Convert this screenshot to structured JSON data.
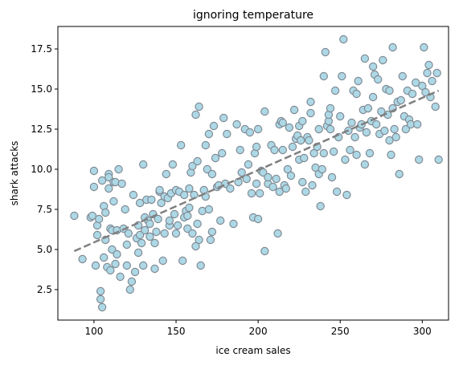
{
  "chart_data": {
    "type": "scatter",
    "title": "ignoring temperature",
    "xlabel": "ice cream sales",
    "ylabel": "shark attacks",
    "xlim": [
      78,
      316
    ],
    "ylim": [
      0.6,
      18.9
    ],
    "xticks": [
      100,
      150,
      200,
      250,
      300
    ],
    "yticks": [
      2.5,
      5.0,
      7.5,
      10.0,
      12.5,
      15.0,
      17.5
    ],
    "xtick_labels": [
      "100",
      "150",
      "200",
      "250",
      "300"
    ],
    "ytick_labels": [
      "2.5",
      "5.0",
      "7.5",
      "10.0",
      "12.5",
      "15.0",
      "17.5"
    ],
    "grid": false,
    "marker_color": "#add8e6",
    "marker_edge_color": "#808a94",
    "trend_color": "#808080",
    "trend_line": {
      "x": [
        88,
        310
      ],
      "y": [
        4.9,
        14.9
      ]
    },
    "points": [
      [
        88,
        7.1
      ],
      [
        93,
        4.4
      ],
      [
        98,
        7.0
      ],
      [
        99,
        7.1
      ],
      [
        100,
        8.9
      ],
      [
        100,
        9.9
      ],
      [
        101,
        4.0
      ],
      [
        102,
        6.5
      ],
      [
        102,
        5.9
      ],
      [
        103,
        6.9
      ],
      [
        104,
        2.4
      ],
      [
        104,
        1.9
      ],
      [
        105,
        1.4
      ],
      [
        105,
        9.3
      ],
      [
        106,
        7.7
      ],
      [
        106,
        4.5
      ],
      [
        107,
        7.3
      ],
      [
        107,
        5.6
      ],
      [
        108,
        3.9
      ],
      [
        109,
        9.7
      ],
      [
        109,
        9.5
      ],
      [
        109,
        8.8
      ],
      [
        110,
        6.3
      ],
      [
        110,
        3.7
      ],
      [
        111,
        5.0
      ],
      [
        111,
        6.2
      ],
      [
        112,
        9.2
      ],
      [
        112,
        8.0
      ],
      [
        113,
        9.2
      ],
      [
        113,
        4.1
      ],
      [
        114,
        6.2
      ],
      [
        114,
        4.7
      ],
      [
        115,
        10.0
      ],
      [
        116,
        3.3
      ],
      [
        117,
        9.1
      ],
      [
        118,
        6.3
      ],
      [
        119,
        7.5
      ],
      [
        120,
        5.3
      ],
      [
        120,
        4.0
      ],
      [
        121,
        6.0
      ],
      [
        122,
        2.5
      ],
      [
        123,
        3.0
      ],
      [
        124,
        8.4
      ],
      [
        125,
        3.6
      ],
      [
        126,
        5.7
      ],
      [
        127,
        6.5
      ],
      [
        127,
        4.8
      ],
      [
        128,
        7.9
      ],
      [
        128,
        5.9
      ],
      [
        129,
        5.4
      ],
      [
        130,
        10.3
      ],
      [
        130,
        4.0
      ],
      [
        131,
        7.0
      ],
      [
        131,
        6.2
      ],
      [
        132,
        8.1
      ],
      [
        133,
        6.8
      ],
      [
        134,
        6.6
      ],
      [
        134,
        5.8
      ],
      [
        135,
        8.1
      ],
      [
        136,
        7.2
      ],
      [
        137,
        5.4
      ],
      [
        137,
        3.8
      ],
      [
        138,
        6.1
      ],
      [
        139,
        6.9
      ],
      [
        140,
        8.6
      ],
      [
        140,
        8.7
      ],
      [
        141,
        7.9
      ],
      [
        142,
        4.3
      ],
      [
        143,
        6.0
      ],
      [
        143,
        8.3
      ],
      [
        144,
        9.7
      ],
      [
        145,
        8.2
      ],
      [
        146,
        6.5
      ],
      [
        146,
        6.8
      ],
      [
        147,
        8.5
      ],
      [
        148,
        10.3
      ],
      [
        149,
        7.2
      ],
      [
        150,
        6.0
      ],
      [
        150,
        8.7
      ],
      [
        151,
        6.5
      ],
      [
        152,
        8.6
      ],
      [
        153,
        11.5
      ],
      [
        154,
        4.3
      ],
      [
        155,
        7.0
      ],
      [
        155,
        8.4
      ],
      [
        156,
        7.4
      ],
      [
        157,
        6.3
      ],
      [
        157,
        7.1
      ],
      [
        158,
        8.8
      ],
      [
        158,
        7.6
      ],
      [
        159,
        9.8
      ],
      [
        160,
        6.0
      ],
      [
        160,
        10.2
      ],
      [
        161,
        8.4
      ],
      [
        162,
        5.2
      ],
      [
        162,
        13.4
      ],
      [
        163,
        10.5
      ],
      [
        163,
        6.6
      ],
      [
        164,
        13.9
      ],
      [
        164,
        5.6
      ],
      [
        165,
        4.0
      ],
      [
        166,
        7.4
      ],
      [
        167,
        8.7
      ],
      [
        168,
        8.3
      ],
      [
        168,
        11.5
      ],
      [
        169,
        10.0
      ],
      [
        170,
        7.5
      ],
      [
        170,
        12.2
      ],
      [
        171,
        5.6
      ],
      [
        172,
        9.7
      ],
      [
        172,
        6.1
      ],
      [
        173,
        12.7
      ],
      [
        174,
        10.7
      ],
      [
        175,
        8.9
      ],
      [
        176,
        9.0
      ],
      [
        177,
        6.8
      ],
      [
        178,
        11.0
      ],
      [
        179,
        13.2
      ],
      [
        180,
        9.1
      ],
      [
        181,
        12.2
      ],
      [
        183,
        8.8
      ],
      [
        185,
        6.6
      ],
      [
        187,
        12.8
      ],
      [
        188,
        9.2
      ],
      [
        189,
        11.2
      ],
      [
        190,
        9.8
      ],
      [
        192,
        12.5
      ],
      [
        193,
        9.4
      ],
      [
        194,
        10.3
      ],
      [
        195,
        12.3
      ],
      [
        196,
        8.5
      ],
      [
        197,
        7.0
      ],
      [
        198,
        11.0
      ],
      [
        199,
        9.1
      ],
      [
        199,
        11.4
      ],
      [
        200,
        12.5
      ],
      [
        200,
        6.9
      ],
      [
        201,
        8.5
      ],
      [
        202,
        9.9
      ],
      [
        203,
        9.8
      ],
      [
        204,
        13.6
      ],
      [
        204,
        4.9
      ],
      [
        206,
        9.1
      ],
      [
        206,
        9.5
      ],
      [
        208,
        11.5
      ],
      [
        209,
        8.9
      ],
      [
        210,
        11.2
      ],
      [
        211,
        9.4
      ],
      [
        212,
        6.0
      ],
      [
        213,
        8.6
      ],
      [
        213,
        12.8
      ],
      [
        214,
        13.0
      ],
      [
        215,
        11.2
      ],
      [
        215,
        12.9
      ],
      [
        216,
        9.0
      ],
      [
        217,
        8.8
      ],
      [
        218,
        10.0
      ],
      [
        219,
        12.6
      ],
      [
        220,
        9.6
      ],
      [
        221,
        11.4
      ],
      [
        222,
        13.7
      ],
      [
        223,
        11.9
      ],
      [
        224,
        12.1
      ],
      [
        225,
        10.6
      ],
      [
        225,
        12.7
      ],
      [
        226,
        11.8
      ],
      [
        227,
        9.2
      ],
      [
        227,
        13.0
      ],
      [
        228,
        10.7
      ],
      [
        229,
        8.6
      ],
      [
        230,
        12.0
      ],
      [
        231,
        11.8
      ],
      [
        232,
        14.2
      ],
      [
        232,
        13.5
      ],
      [
        233,
        9.0
      ],
      [
        234,
        11.0
      ],
      [
        235,
        10.1
      ],
      [
        236,
        11.4
      ],
      [
        237,
        12.5
      ],
      [
        237,
        9.7
      ],
      [
        238,
        7.7
      ],
      [
        239,
        10.0
      ],
      [
        240,
        11.0
      ],
      [
        240,
        15.8
      ],
      [
        241,
        17.3
      ],
      [
        242,
        12.7
      ],
      [
        243,
        13.0
      ],
      [
        243,
        13.4
      ],
      [
        244,
        12.5
      ],
      [
        244,
        13.8
      ],
      [
        245,
        9.5
      ],
      [
        246,
        11.1
      ],
      [
        247,
        14.9
      ],
      [
        248,
        8.6
      ],
      [
        249,
        12.0
      ],
      [
        250,
        13.3
      ],
      [
        251,
        15.8
      ],
      [
        252,
        18.1
      ],
      [
        253,
        10.6
      ],
      [
        254,
        8.4
      ],
      [
        255,
        12.4
      ],
      [
        256,
        11.2
      ],
      [
        257,
        12.9
      ],
      [
        258,
        14.9
      ],
      [
        259,
        12.0
      ],
      [
        260,
        10.9
      ],
      [
        260,
        14.7
      ],
      [
        261,
        15.5
      ],
      [
        262,
        12.6
      ],
      [
        263,
        12.8
      ],
      [
        264,
        13.7
      ],
      [
        265,
        10.3
      ],
      [
        265,
        16.9
      ],
      [
        266,
        12.3
      ],
      [
        267,
        13.8
      ],
      [
        268,
        11.0
      ],
      [
        269,
        13.0
      ],
      [
        270,
        14.5
      ],
      [
        270,
        16.4
      ],
      [
        271,
        15.9
      ],
      [
        272,
        12.8
      ],
      [
        273,
        15.6
      ],
      [
        274,
        12.2
      ],
      [
        275,
        13.6
      ],
      [
        276,
        16.8
      ],
      [
        277,
        12.4
      ],
      [
        278,
        15.0
      ],
      [
        279,
        13.4
      ],
      [
        280,
        11.8
      ],
      [
        280,
        14.9
      ],
      [
        281,
        10.9
      ],
      [
        282,
        13.8
      ],
      [
        282,
        17.6
      ],
      [
        283,
        12.5
      ],
      [
        284,
        12.0
      ],
      [
        285,
        14.2
      ],
      [
        286,
        9.7
      ],
      [
        287,
        14.3
      ],
      [
        288,
        15.8
      ],
      [
        289,
        13.3
      ],
      [
        290,
        12.5
      ],
      [
        291,
        14.9
      ],
      [
        292,
        13.1
      ],
      [
        293,
        12.8
      ],
      [
        294,
        14.7
      ],
      [
        296,
        15.4
      ],
      [
        297,
        12.8
      ],
      [
        298,
        10.6
      ],
      [
        300,
        15.2
      ],
      [
        301,
        17.6
      ],
      [
        302,
        14.8
      ],
      [
        303,
        16.0
      ],
      [
        304,
        16.5
      ],
      [
        305,
        14.5
      ],
      [
        306,
        15.5
      ],
      [
        308,
        13.9
      ],
      [
        309,
        16.0
      ],
      [
        310,
        10.6
      ]
    ]
  }
}
